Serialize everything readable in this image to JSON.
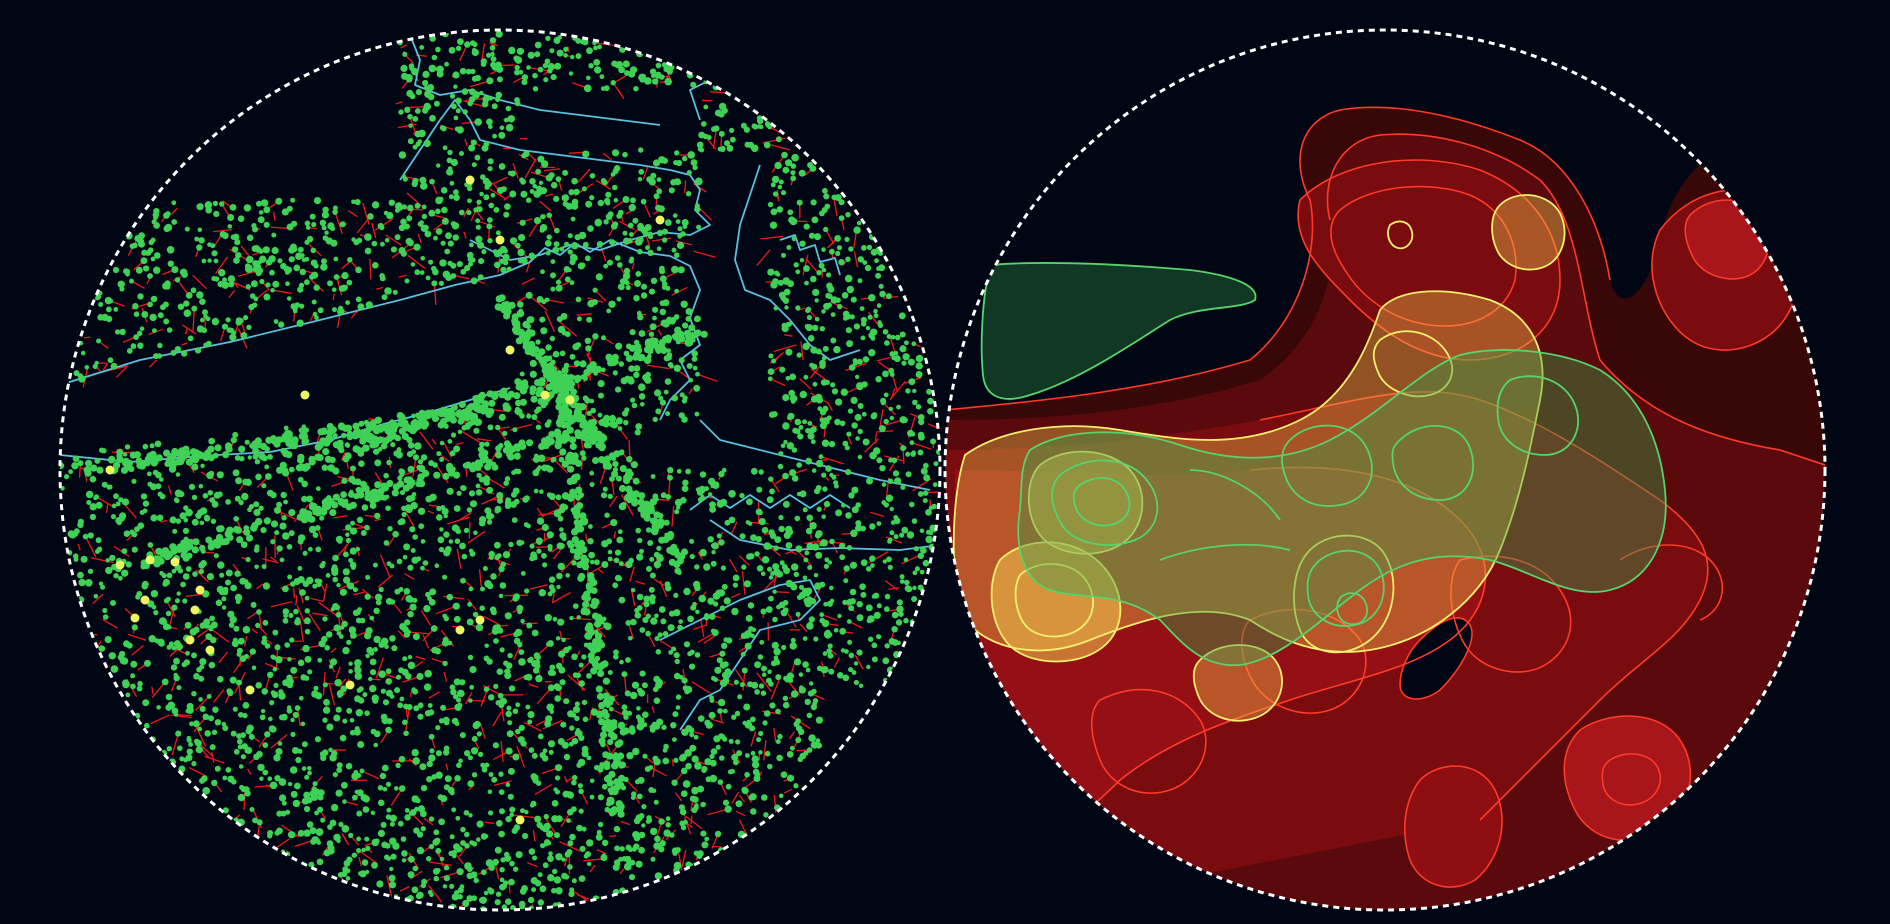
{
  "panels": [
    {
      "id": "point-map",
      "type": "point-map",
      "layers": [
        "coastline",
        "street-network",
        "point-markers",
        "highlight-markers"
      ],
      "colors": {
        "background": "#000614",
        "coastline": "#5bc0de",
        "streets": "#ff1a1a",
        "points": "#3fd156",
        "highlights": "#ecf562",
        "frame": "#ffffff"
      }
    },
    {
      "id": "density-map",
      "type": "kde-density-contours",
      "layers": [
        "red-density-contours",
        "yellow-density-contours",
        "green-density-contours"
      ],
      "colors": {
        "background": "#000614",
        "red_fill": "#9e0c10",
        "red_line": "#ff3a26",
        "yellow_fill": "#f2c94c",
        "yellow_line": "#f7f06c",
        "green_fill": "#3b9a4a",
        "green_line": "#56d36c",
        "frame": "#ffffff"
      }
    }
  ]
}
